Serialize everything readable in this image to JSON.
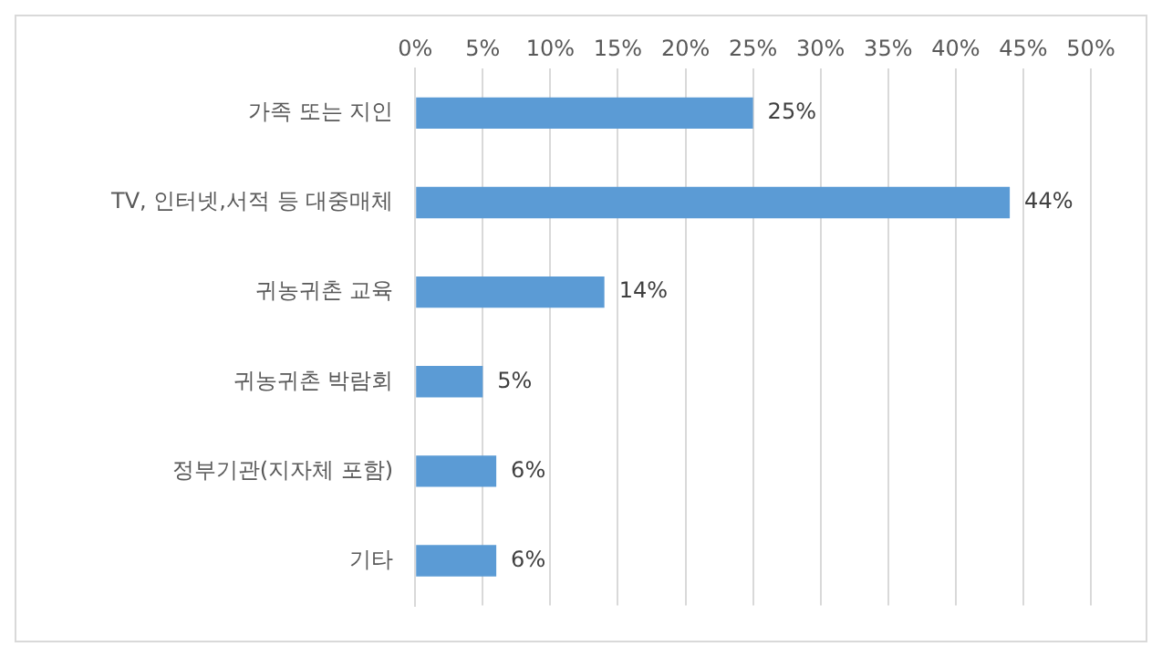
{
  "chart_data": {
    "type": "bar",
    "orientation": "horizontal",
    "categories": [
      "가족 또는 지인",
      "TV, 인터넷,서적 등 대중매체",
      "귀농귀촌 교육",
      "귀농귀촌 박람회",
      "정부기관(지자체 포함)",
      "기타"
    ],
    "values": [
      25,
      44,
      14,
      5,
      6,
      6
    ],
    "value_labels": [
      "25%",
      "44%",
      "14%",
      "5%",
      "6%",
      "6%"
    ],
    "color": "#5b9bd5",
    "xlim": [
      0,
      50
    ],
    "xticks": [
      {
        "value": 0,
        "label": "0%"
      },
      {
        "value": 5,
        "label": "5%"
      },
      {
        "value": 10,
        "label": "10%"
      },
      {
        "value": 15,
        "label": "15%"
      },
      {
        "value": 20,
        "label": "20%"
      },
      {
        "value": 25,
        "label": "25%"
      },
      {
        "value": 30,
        "label": "30%"
      },
      {
        "value": 35,
        "label": "35%"
      },
      {
        "value": 40,
        "label": "40%"
      },
      {
        "value": 45,
        "label": "45%"
      },
      {
        "value": 50,
        "label": "50%"
      }
    ],
    "grid": "x"
  }
}
